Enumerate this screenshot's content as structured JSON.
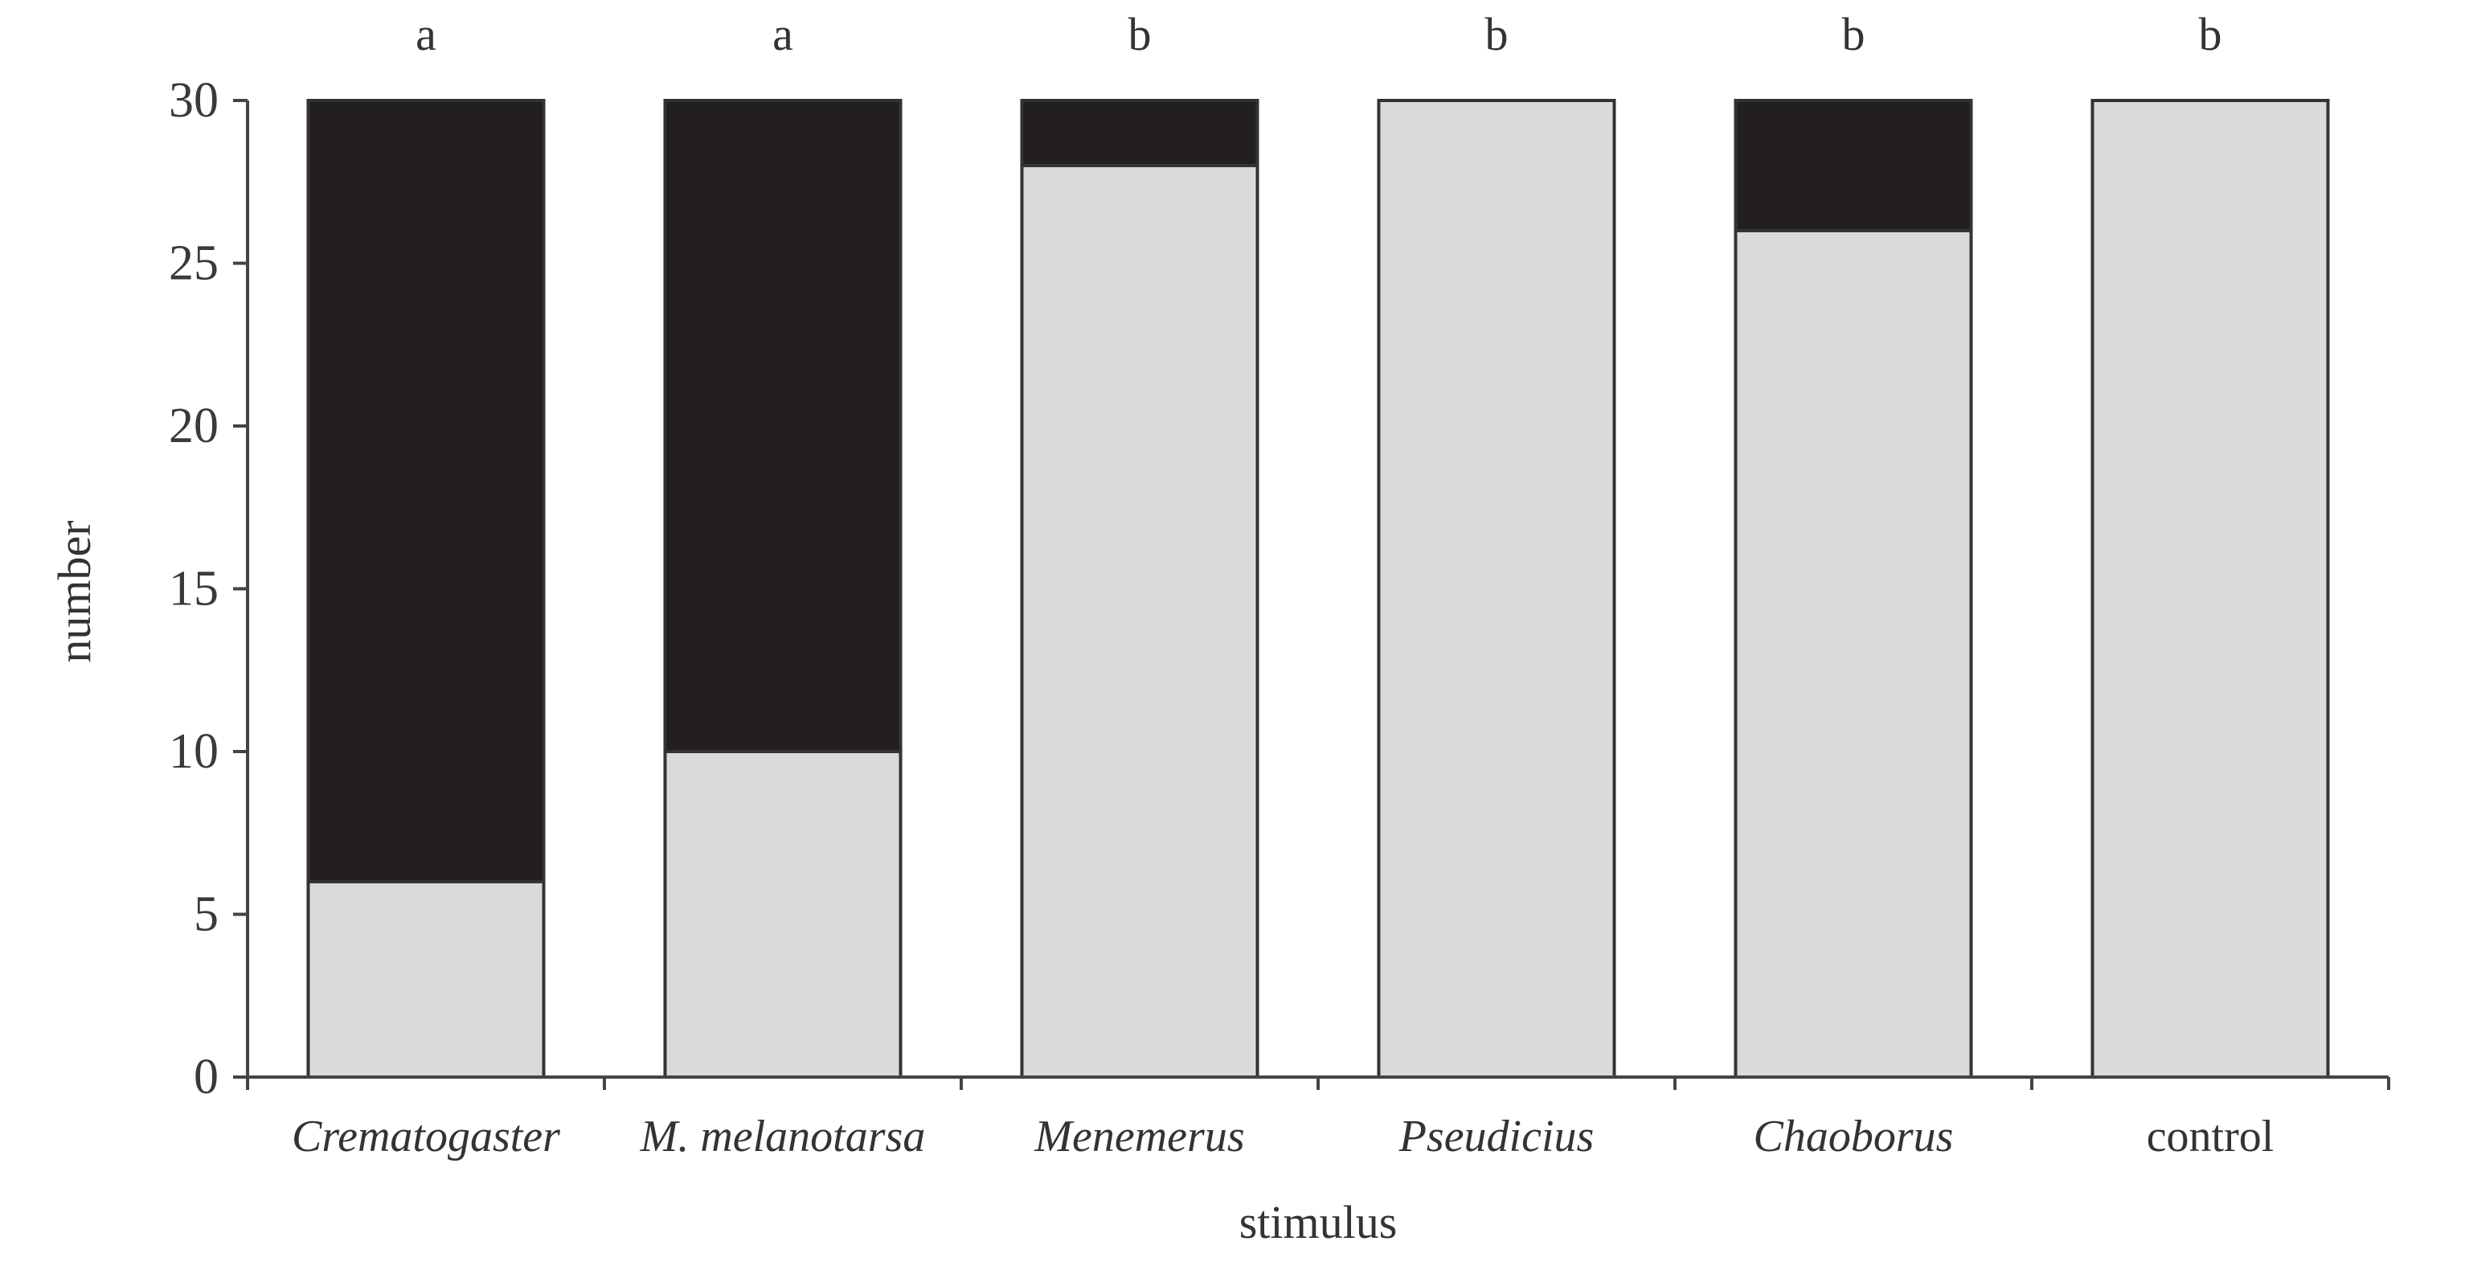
{
  "chart_data": {
    "type": "bar",
    "stacked": true,
    "title": "",
    "xlabel": "stimulus",
    "ylabel": "number",
    "ylim": [
      0,
      30
    ],
    "yticks": [
      "0",
      "5",
      "10",
      "15",
      "20",
      "25",
      "30"
    ],
    "categories": [
      "Crematogaster",
      "M. melanotarsa",
      "Menemerus",
      "Pseudicius",
      "Chaoborus",
      "control"
    ],
    "category_italic": [
      true,
      true,
      true,
      true,
      true,
      false
    ],
    "significance_letters": [
      "a",
      "a",
      "b",
      "b",
      "b",
      "b"
    ],
    "series": [
      {
        "color": "#d9dadc",
        "values": [
          6,
          10,
          28,
          30,
          26,
          30
        ]
      },
      {
        "color": "#231f20",
        "values": [
          24,
          20,
          2,
          0,
          4,
          0
        ]
      }
    ],
    "grid": false,
    "legend": "none"
  }
}
